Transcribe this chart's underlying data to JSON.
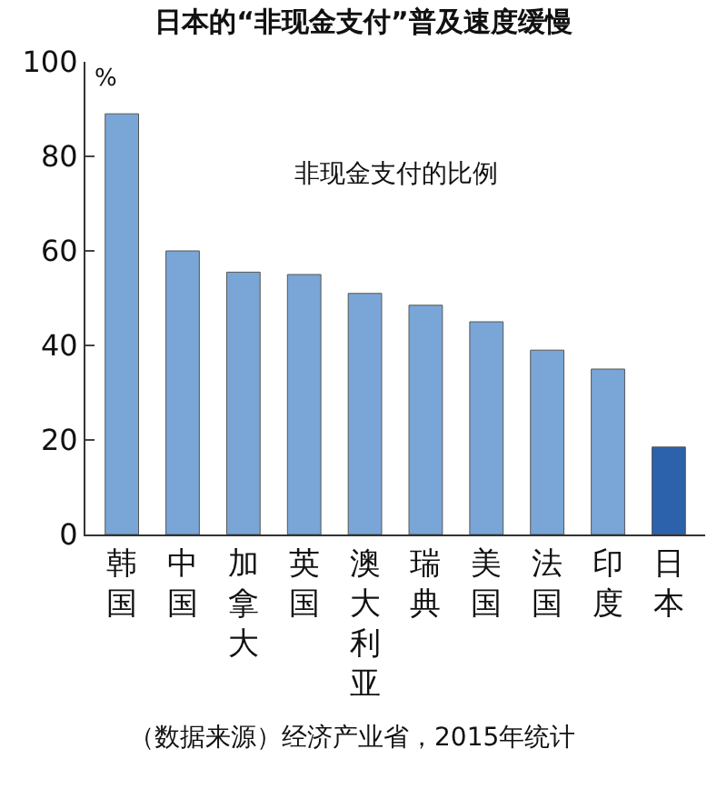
{
  "chart_data": {
    "type": "bar",
    "title": "日本的“非现金支付”普及速度缓慢",
    "ylabel": "%",
    "annotations": [
      "非现金支付的比例",
      "（数据来源）经济产业省，2015年统计"
    ],
    "categories": [
      "韩国",
      "中国",
      "加拿大",
      "英国",
      "澳大利亚",
      "瑞典",
      "美国",
      "法国",
      "印度",
      "日本"
    ],
    "values": [
      89,
      60,
      55.5,
      55,
      51,
      48.5,
      45,
      39,
      35,
      18.5
    ],
    "colors": [
      "#79a6d6",
      "#79a6d6",
      "#79a6d6",
      "#79a6d6",
      "#79a6d6",
      "#79a6d6",
      "#79a6d6",
      "#79a6d6",
      "#79a6d6",
      "#2b62ab"
    ],
    "ylim": [
      0,
      100
    ],
    "yticks": [
      0,
      20,
      40,
      60,
      80,
      100
    ]
  }
}
